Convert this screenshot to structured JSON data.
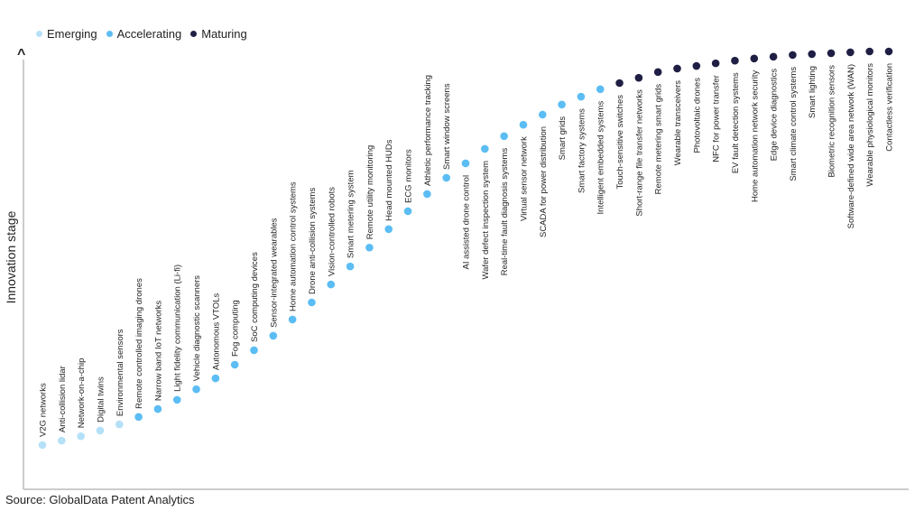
{
  "chart_data": {
    "type": "scatter",
    "title": "",
    "xlabel": "",
    "ylabel": "Innovation stage",
    "ylim": [
      0,
      100
    ],
    "grid": false,
    "legend_position": "top-left",
    "legend": [
      {
        "name": "Emerging",
        "color": "#b5e1f8"
      },
      {
        "name": "Accelerating",
        "color": "#5bbdf4"
      },
      {
        "name": "Maturing",
        "color": "#1f1f45"
      }
    ],
    "points": [
      {
        "label": "V2G networks",
        "stage": "Emerging",
        "y": 10.3
      },
      {
        "label": "Anti-collision lidar",
        "stage": "Emerging",
        "y": 11.3
      },
      {
        "label": "Network-on-a-chip",
        "stage": "Emerging",
        "y": 12.3
      },
      {
        "label": "Digital twins",
        "stage": "Emerging",
        "y": 13.6
      },
      {
        "label": "Environmental sensors",
        "stage": "Emerging",
        "y": 15.0
      },
      {
        "label": "Remote controlled imaging drones",
        "stage": "Accelerating",
        "y": 16.7
      },
      {
        "label": "Narrow band IoT networks",
        "stage": "Accelerating",
        "y": 18.5
      },
      {
        "label": "Light fidelity communication (Li-fi)",
        "stage": "Accelerating",
        "y": 20.6
      },
      {
        "label": "Vehicle diagnostic scanners",
        "stage": "Accelerating",
        "y": 23.0
      },
      {
        "label": "Autonomous VTOLs",
        "stage": "Accelerating",
        "y": 25.5
      },
      {
        "label": "Fog computing",
        "stage": "Accelerating",
        "y": 28.6
      },
      {
        "label": "SoC computing devices",
        "stage": "Accelerating",
        "y": 31.9
      },
      {
        "label": "Sensor-integrated wearables",
        "stage": "Accelerating",
        "y": 35.2
      },
      {
        "label": "Home automation control systems",
        "stage": "Accelerating",
        "y": 38.9
      },
      {
        "label": "Drone anti-collision systems",
        "stage": "Accelerating",
        "y": 42.8
      },
      {
        "label": "Vision-controlled robots",
        "stage": "Accelerating",
        "y": 46.9
      },
      {
        "label": "Smart metering system",
        "stage": "Accelerating",
        "y": 51.0
      },
      {
        "label": "Remote utility monitoring",
        "stage": "Accelerating",
        "y": 55.3
      },
      {
        "label": "Head mounted HUDs",
        "stage": "Accelerating",
        "y": 59.5
      },
      {
        "label": "ECG monitors",
        "stage": "Accelerating",
        "y": 63.6
      },
      {
        "label": "Athletic performance tracking",
        "stage": "Accelerating",
        "y": 67.5
      },
      {
        "label": "Smart window screens",
        "stage": "Accelerating",
        "y": 71.2
      },
      {
        "label": "AI assisted drone control",
        "stage": "Accelerating",
        "y": 74.5
      },
      {
        "label": "Wafer defect inspection system",
        "stage": "Accelerating",
        "y": 77.8
      },
      {
        "label": "Real-time fault diagnosis systems",
        "stage": "Accelerating",
        "y": 80.7
      },
      {
        "label": "Virtual sensor network",
        "stage": "Accelerating",
        "y": 83.3
      },
      {
        "label": "SCADA for power distribution",
        "stage": "Accelerating",
        "y": 85.6
      },
      {
        "label": "Smart grids",
        "stage": "Accelerating",
        "y": 87.9
      },
      {
        "label": "Smart factory systems",
        "stage": "Accelerating",
        "y": 89.7
      },
      {
        "label": "Intelligent embedded systems",
        "stage": "Accelerating",
        "y": 91.4
      },
      {
        "label": "Touch-sensitive switches",
        "stage": "Maturing",
        "y": 92.8
      },
      {
        "label": "Short-range file transfer networks",
        "stage": "Maturing",
        "y": 94.0
      },
      {
        "label": "Remote metering smart grids",
        "stage": "Maturing",
        "y": 95.3
      },
      {
        "label": "Wearable transceivers",
        "stage": "Maturing",
        "y": 96.1
      },
      {
        "label": "Photovoltaic drones",
        "stage": "Maturing",
        "y": 96.7
      },
      {
        "label": "NFC for power transfer",
        "stage": "Maturing",
        "y": 97.3
      },
      {
        "label": "EV fault detection systems",
        "stage": "Maturing",
        "y": 97.9
      },
      {
        "label": "Home automation network security",
        "stage": "Maturing",
        "y": 98.4
      },
      {
        "label": "Edge device diagnostics",
        "stage": "Maturing",
        "y": 98.8
      },
      {
        "label": "Smart climate control systems",
        "stage": "Maturing",
        "y": 99.2
      },
      {
        "label": "Smart lighting",
        "stage": "Maturing",
        "y": 99.4
      },
      {
        "label": "Biometric recognition sensors",
        "stage": "Maturing",
        "y": 99.6
      },
      {
        "label": "Software-defined wide area network (WAN)",
        "stage": "Maturing",
        "y": 99.8
      },
      {
        "label": "Wearable physiological monitors",
        "stage": "Maturing",
        "y": 100
      },
      {
        "label": "Contactless verification",
        "stage": "Maturing",
        "y": 100
      }
    ]
  },
  "source": "Source: GlobalData Patent Analytics"
}
